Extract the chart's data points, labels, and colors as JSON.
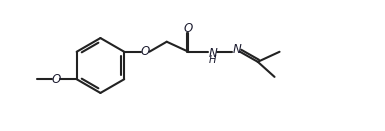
{
  "bg_color": "#ffffff",
  "line_color": "#222222",
  "line_width": 1.5,
  "text_color": "#1a1a2e",
  "font_size": 8.5,
  "fig_width": 3.85,
  "fig_height": 1.31,
  "dpi": 100,
  "xlim": [
    0,
    11.5
  ],
  "ylim": [
    0,
    3.4
  ],
  "bx": 3.0,
  "by": 1.7,
  "r": 0.82
}
